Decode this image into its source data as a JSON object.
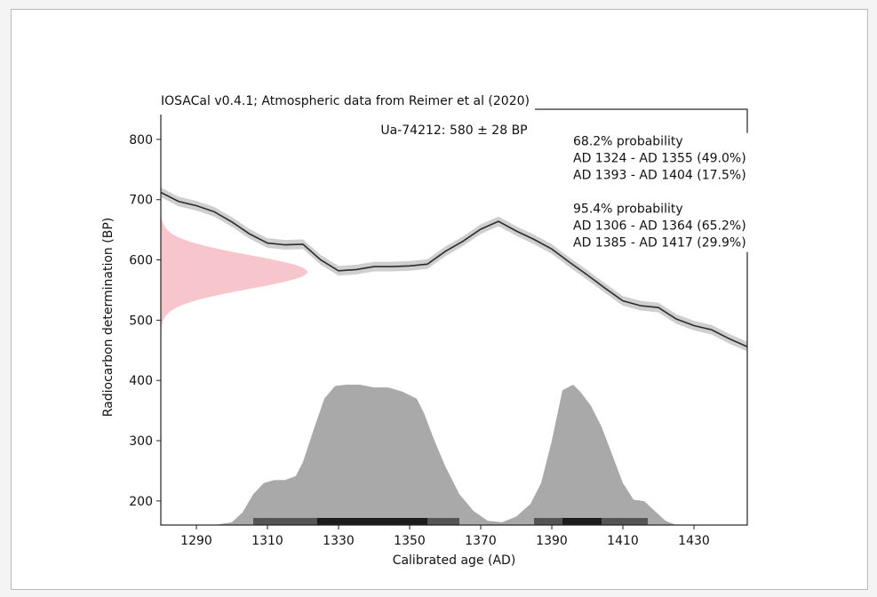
{
  "chart_data": {
    "type": "area",
    "title": "IOSACal v0.4.1; Atmospheric data from Reimer et al (2020)",
    "subtitle": "Ua-74212: 580 ± 28 BP",
    "xlabel": "Calibrated age (AD)",
    "ylabel": "Radiocarbon determination (BP)",
    "xlim": [
      1280,
      1445
    ],
    "ylim": [
      160,
      850
    ],
    "x_ticks": [
      1290,
      1310,
      1330,
      1350,
      1370,
      1390,
      1410,
      1430
    ],
    "y_ticks": [
      200,
      300,
      400,
      500,
      600,
      700,
      800
    ],
    "grid": false,
    "annotations": {
      "p68_heading": "68.2% probability",
      "p68_range_1": "AD 1324 - AD 1355 (49.0%)",
      "p68_range_2": "AD 1393 - AD 1404 (17.5%)",
      "p95_heading": "95.4% probability",
      "p95_range_1": "AD 1306 - AD 1364 (65.2%)",
      "p95_range_2": "AD 1385 - AD 1417 (29.9%)"
    },
    "calibration_curve": {
      "x": [
        1280,
        1285,
        1290,
        1295,
        1300,
        1305,
        1310,
        1315,
        1320,
        1325,
        1330,
        1335,
        1340,
        1345,
        1350,
        1355,
        1360,
        1365,
        1370,
        1375,
        1380,
        1385,
        1390,
        1395,
        1400,
        1405,
        1410,
        1415,
        1420,
        1425,
        1430,
        1435,
        1440,
        1445
      ],
      "y": [
        712,
        697,
        690,
        680,
        663,
        643,
        628,
        625,
        626,
        600,
        582,
        584,
        589,
        589,
        590,
        593,
        614,
        631,
        651,
        664,
        648,
        634,
        618,
        596,
        575,
        553,
        532,
        524,
        521,
        502,
        491,
        484,
        469,
        456
      ],
      "uncertainty": 8
    },
    "radiocarbon_date": {
      "mean": 580,
      "sigma": 28
    },
    "calibrated_probability": {
      "x": [
        1295,
        1300,
        1303,
        1306,
        1309,
        1312,
        1315,
        1318,
        1320,
        1323,
        1326,
        1329,
        1332,
        1336,
        1340,
        1344,
        1348,
        1352,
        1354,
        1357,
        1360,
        1364,
        1368,
        1372,
        1376,
        1380,
        1384,
        1387,
        1390,
        1393,
        1396,
        1398,
        1401,
        1404,
        1407,
        1410,
        1413,
        1416,
        1419,
        1422,
        1425
      ],
      "density": [
        0,
        0.02,
        0.09,
        0.22,
        0.3,
        0.32,
        0.32,
        0.35,
        0.45,
        0.68,
        0.9,
        0.99,
        1.0,
        1.0,
        0.98,
        0.98,
        0.95,
        0.9,
        0.8,
        0.6,
        0.42,
        0.22,
        0.1,
        0.03,
        0.02,
        0.06,
        0.15,
        0.3,
        0.6,
        0.96,
        1.0,
        0.95,
        0.85,
        0.7,
        0.5,
        0.3,
        0.18,
        0.17,
        0.1,
        0.03,
        0
      ]
    },
    "hpd_intervals": {
      "p68": [
        [
          1324,
          1355
        ],
        [
          1393,
          1404
        ]
      ],
      "p95": [
        [
          1306,
          1364
        ],
        [
          1385,
          1417
        ]
      ]
    },
    "colors": {
      "curve_line": "#2b2b2b",
      "curve_band": "#cfcfcf",
      "date_distribution": "#f7c6cc",
      "calibrated_fill": "#a9a9a9",
      "hpd_95": "#555555",
      "hpd_68": "#1c1c1c"
    }
  }
}
